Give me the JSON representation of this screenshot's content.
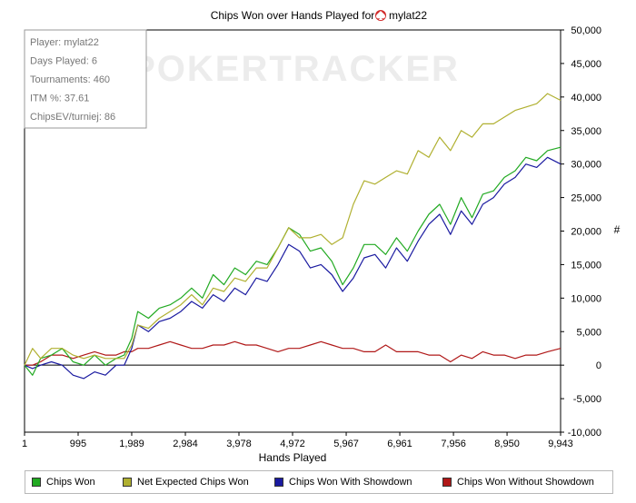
{
  "chart_data": {
    "type": "line",
    "title": "Chips Won over Hands Played for",
    "title_player": "mylat22",
    "title_icon": "poker-spade-icon",
    "watermark": "POKERTRACKER",
    "xlabel": "Hands Played",
    "ylabel": "#",
    "xlim": [
      1,
      9943
    ],
    "ylim": [
      -10000,
      50000
    ],
    "x_ticks": [
      1,
      995,
      1989,
      2984,
      3978,
      4972,
      5967,
      6961,
      7956,
      8950,
      9943
    ],
    "x_tick_labels": [
      "1",
      "995",
      "1,989",
      "2,984",
      "3,978",
      "4,972",
      "5,967",
      "6,961",
      "7,956",
      "8,950",
      "9,943"
    ],
    "y_ticks": [
      -10000,
      -5000,
      0,
      5000,
      10000,
      15000,
      20000,
      25000,
      30000,
      35000,
      40000,
      45000,
      50000
    ],
    "y_tick_labels": [
      "-10,000",
      "-5,000",
      "0",
      "5,000",
      "10,000",
      "15,000",
      "20,000",
      "25,000",
      "30,000",
      "35,000",
      "40,000",
      "45,000",
      "50,000"
    ],
    "grid": false,
    "legend_position": "bottom",
    "info_box": [
      "Player: mylat22",
      "Days Played: 6",
      "Tournaments: 460",
      "ITM %: 37.61",
      "ChipsEV/turniej: 86"
    ],
    "series": [
      {
        "name": "Chips Won",
        "color": "#22aa22",
        "x": [
          1,
          150,
          300,
          500,
          700,
          900,
          1100,
          1300,
          1500,
          1700,
          1850,
          1989,
          2100,
          2300,
          2500,
          2700,
          2900,
          3100,
          3300,
          3500,
          3700,
          3900,
          4100,
          4300,
          4500,
          4700,
          4900,
          5100,
          5300,
          5500,
          5700,
          5900,
          6100,
          6300,
          6500,
          6700,
          6900,
          7100,
          7300,
          7500,
          7700,
          7900,
          8100,
          8300,
          8500,
          8700,
          8900,
          9100,
          9300,
          9500,
          9700,
          9943
        ],
        "values": [
          0,
          -1500,
          1000,
          1500,
          2500,
          500,
          0,
          1500,
          0,
          1000,
          1500,
          4000,
          8000,
          7000,
          8500,
          9000,
          10000,
          11500,
          10000,
          13500,
          12000,
          14500,
          13500,
          15500,
          15000,
          17500,
          20500,
          19500,
          17000,
          17500,
          15500,
          12000,
          14500,
          18000,
          18000,
          16500,
          19000,
          17000,
          20000,
          22500,
          24000,
          21000,
          25000,
          22000,
          25500,
          26000,
          28000,
          29000,
          31000,
          30500,
          32000,
          32500
        ]
      },
      {
        "name": "Net Expected Chips Won",
        "color": "#b0b030",
        "x": [
          1,
          150,
          300,
          500,
          700,
          900,
          1100,
          1300,
          1500,
          1700,
          1850,
          1989,
          2100,
          2300,
          2500,
          2700,
          2900,
          3100,
          3300,
          3500,
          3700,
          3900,
          4100,
          4300,
          4500,
          4700,
          4900,
          5100,
          5300,
          5500,
          5700,
          5900,
          6100,
          6300,
          6500,
          6700,
          6900,
          7100,
          7300,
          7500,
          7700,
          7900,
          8100,
          8300,
          8500,
          8700,
          8900,
          9100,
          9300,
          9500,
          9700,
          9943
        ],
        "values": [
          0,
          2500,
          1000,
          2500,
          2500,
          1500,
          1000,
          1500,
          1000,
          1000,
          1000,
          3000,
          6000,
          5500,
          7000,
          8000,
          9000,
          10500,
          9000,
          11500,
          11000,
          13000,
          12500,
          14500,
          14500,
          17500,
          20500,
          19000,
          19000,
          19500,
          18000,
          19000,
          24000,
          27500,
          27000,
          28000,
          29000,
          28500,
          32000,
          31000,
          34000,
          32000,
          35000,
          34000,
          36000,
          36000,
          37000,
          38000,
          38500,
          39000,
          40500,
          39500
        ]
      },
      {
        "name": "Chips Won With Showdown",
        "color": "#1a1aa0",
        "x": [
          1,
          150,
          300,
          500,
          700,
          900,
          1100,
          1300,
          1500,
          1700,
          1850,
          1989,
          2100,
          2300,
          2500,
          2700,
          2900,
          3100,
          3300,
          3500,
          3700,
          3900,
          4100,
          4300,
          4500,
          4700,
          4900,
          5100,
          5300,
          5500,
          5700,
          5900,
          6100,
          6300,
          6500,
          6700,
          6900,
          7100,
          7300,
          7500,
          7700,
          7900,
          8100,
          8300,
          8500,
          8700,
          8900,
          9100,
          9300,
          9500,
          9700,
          9943
        ],
        "values": [
          0,
          -500,
          0,
          500,
          0,
          -1500,
          -2000,
          -1000,
          -1500,
          0,
          0,
          2500,
          6000,
          5000,
          6500,
          7000,
          8000,
          9500,
          8500,
          10500,
          9500,
          11500,
          10500,
          13000,
          12500,
          15000,
          18000,
          17000,
          14500,
          15000,
          13500,
          11000,
          13000,
          16000,
          16500,
          14500,
          17500,
          15500,
          18500,
          21000,
          22500,
          19500,
          23000,
          21000,
          24000,
          25000,
          27000,
          28000,
          30000,
          29500,
          31000,
          30000
        ]
      },
      {
        "name": "Chips Won Without Showdown",
        "color": "#b01818",
        "x": [
          1,
          150,
          300,
          500,
          700,
          900,
          1100,
          1300,
          1500,
          1700,
          1850,
          1989,
          2100,
          2300,
          2500,
          2700,
          2900,
          3100,
          3300,
          3500,
          3700,
          3900,
          4100,
          4300,
          4500,
          4700,
          4900,
          5100,
          5300,
          5500,
          5700,
          5900,
          6100,
          6300,
          6500,
          6700,
          6900,
          7100,
          7300,
          7500,
          7700,
          7900,
          8100,
          8300,
          8500,
          8700,
          8900,
          9100,
          9300,
          9500,
          9700,
          9943
        ],
        "values": [
          0,
          0,
          500,
          1500,
          1500,
          1000,
          1500,
          2000,
          1500,
          1500,
          2000,
          2000,
          2500,
          2500,
          3000,
          3500,
          3000,
          2500,
          2500,
          3000,
          3000,
          3500,
          3000,
          3000,
          2500,
          2000,
          2500,
          2500,
          3000,
          3500,
          3000,
          2500,
          2500,
          2000,
          2000,
          3000,
          2000,
          2000,
          2000,
          1500,
          1500,
          500,
          1500,
          1000,
          2000,
          1500,
          1500,
          1000,
          1500,
          1500,
          2000,
          2500
        ]
      }
    ]
  }
}
